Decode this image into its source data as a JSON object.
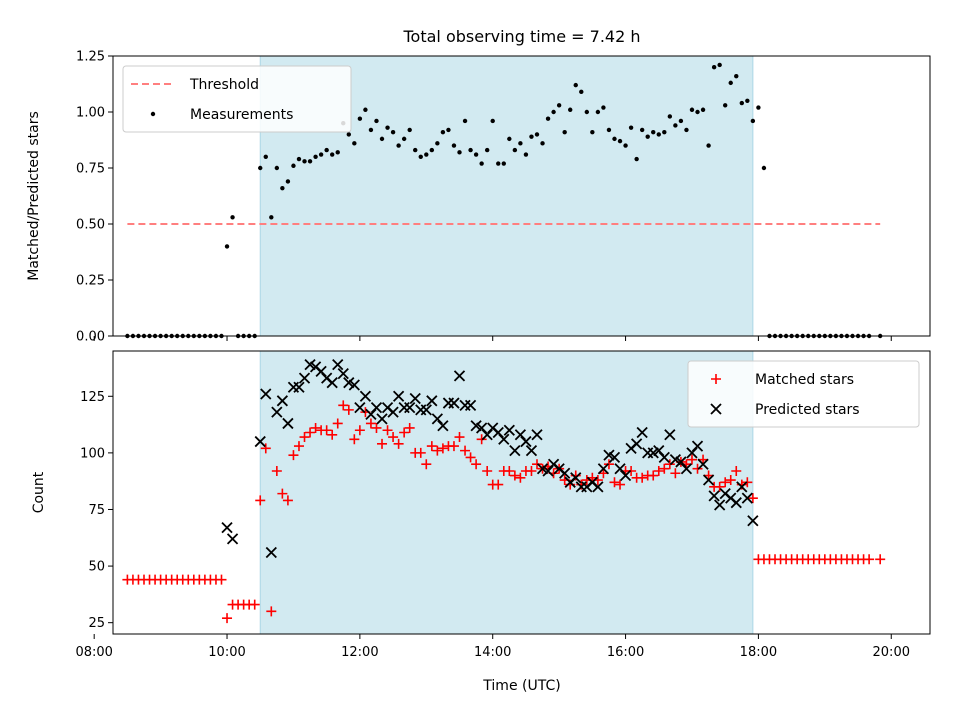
{
  "title": "Total observing time = 7.42 h",
  "xlabel": "Time (UTC)",
  "colors": {
    "shade": "#add8e6",
    "threshold": "#ff7f7f",
    "measurement": "#000000",
    "matched": "#ff0000",
    "predicted": "#000000"
  },
  "chart_data": [
    {
      "type": "scatter",
      "ylabel": "Matched/Predicted stars",
      "ylim": [
        0,
        1.25
      ],
      "xlim": [
        "08:17",
        "20:35"
      ],
      "yticks": [
        "0.00",
        "0.25",
        "0.50",
        "0.75",
        "1.00",
        "1.25"
      ],
      "yticks_values": [
        0,
        0.25,
        0.5,
        0.75,
        1.0,
        1.25
      ],
      "observing_window": [
        "10:30",
        "17:55"
      ],
      "threshold": {
        "name": "Threshold",
        "y": 0.5,
        "x_range": [
          "08:30",
          "19:50"
        ]
      },
      "legend": {
        "placement": "top-left",
        "entries": [
          "Threshold",
          "Measurements"
        ]
      },
      "series": [
        {
          "name": "Measurements",
          "x": [
            "08:30",
            "08:35",
            "08:40",
            "08:45",
            "08:50",
            "08:55",
            "09:00",
            "09:05",
            "09:10",
            "09:15",
            "09:20",
            "09:25",
            "09:30",
            "09:35",
            "09:40",
            "09:45",
            "09:50",
            "09:55",
            "10:00",
            "10:05",
            "10:10",
            "10:15",
            "10:20",
            "10:25",
            "10:30",
            "10:35",
            "10:40",
            "10:45",
            "10:50",
            "10:55",
            "11:00",
            "11:05",
            "11:10",
            "11:15",
            "11:20",
            "11:25",
            "11:30",
            "11:35",
            "11:40",
            "11:45",
            "11:50",
            "11:55",
            "12:00",
            "12:05",
            "12:10",
            "12:15",
            "12:20",
            "12:25",
            "12:30",
            "12:35",
            "12:40",
            "12:45",
            "12:50",
            "12:55",
            "13:00",
            "13:05",
            "13:10",
            "13:15",
            "13:20",
            "13:25",
            "13:30",
            "13:35",
            "13:40",
            "13:45",
            "13:50",
            "13:55",
            "14:00",
            "14:05",
            "14:10",
            "14:15",
            "14:20",
            "14:25",
            "14:30",
            "14:35",
            "14:40",
            "14:45",
            "14:50",
            "14:55",
            "15:00",
            "15:05",
            "15:10",
            "15:15",
            "15:20",
            "15:25",
            "15:30",
            "15:35",
            "15:40",
            "15:45",
            "15:50",
            "15:55",
            "16:00",
            "16:05",
            "16:10",
            "16:15",
            "16:20",
            "16:25",
            "16:30",
            "16:35",
            "16:40",
            "16:45",
            "16:50",
            "16:55",
            "17:00",
            "17:05",
            "17:10",
            "17:15",
            "17:20",
            "17:25",
            "17:30",
            "17:35",
            "17:40",
            "17:45",
            "17:50",
            "17:55",
            "18:00",
            "18:05",
            "18:10",
            "18:15",
            "18:20",
            "18:25",
            "18:30",
            "18:35",
            "18:40",
            "18:45",
            "18:50",
            "18:55",
            "19:00",
            "19:05",
            "19:10",
            "19:15",
            "19:20",
            "19:25",
            "19:30",
            "19:35",
            "19:40",
            "19:50"
          ],
          "y": [
            0,
            0,
            0,
            0,
            0,
            0,
            0,
            0,
            0,
            0,
            0,
            0,
            0,
            0,
            0,
            0,
            0,
            0,
            0.4,
            0.53,
            0,
            0,
            0,
            0,
            0.75,
            0.8,
            0.53,
            0.75,
            0.66,
            0.69,
            0.76,
            0.79,
            0.78,
            0.78,
            0.8,
            0.81,
            0.83,
            0.81,
            0.82,
            0.95,
            0.9,
            0.86,
            0.97,
            1.01,
            0.92,
            0.96,
            0.88,
            0.93,
            0.91,
            0.85,
            0.88,
            0.92,
            0.83,
            0.8,
            0.81,
            0.83,
            0.86,
            0.91,
            0.92,
            0.85,
            0.82,
            0.96,
            0.83,
            0.81,
            0.77,
            0.83,
            0.96,
            0.77,
            0.77,
            0.88,
            0.83,
            0.86,
            0.81,
            0.89,
            0.9,
            0.86,
            0.97,
            1.0,
            1.03,
            0.91,
            1.01,
            1.12,
            1.09,
            1.0,
            0.91,
            1.0,
            1.02,
            0.92,
            0.88,
            0.87,
            0.85,
            0.93,
            0.79,
            0.92,
            0.89,
            0.91,
            0.9,
            0.91,
            0.98,
            0.94,
            0.96,
            0.92,
            1.01,
            1.0,
            1.01,
            0.85,
            1.2,
            1.21,
            1.03,
            1.13,
            1.16,
            1.04,
            1.05,
            0.96,
            1.02,
            0.75,
            0,
            0,
            0,
            0,
            0,
            0,
            0,
            0,
            0,
            0,
            0,
            0,
            0,
            0,
            0,
            0,
            0,
            0,
            0,
            0
          ]
        }
      ]
    },
    {
      "type": "scatter",
      "ylabel": "Count",
      "xlabel": "Time (UTC)",
      "ylim": [
        20,
        145
      ],
      "xlim": [
        "08:17",
        "20:35"
      ],
      "yticks": [
        "25",
        "50",
        "75",
        "100",
        "125"
      ],
      "yticks_values": [
        25,
        50,
        75,
        100,
        125
      ],
      "xticks": [
        "08:00",
        "10:00",
        "12:00",
        "14:00",
        "16:00",
        "18:00",
        "20:00"
      ],
      "observing_window": [
        "10:30",
        "17:55"
      ],
      "legend": {
        "placement": "top-right",
        "entries": [
          "Matched stars",
          "Predicted stars"
        ]
      },
      "series": [
        {
          "name": "Matched stars",
          "x": [
            "08:30",
            "08:35",
            "08:40",
            "08:45",
            "08:50",
            "08:55",
            "09:00",
            "09:05",
            "09:10",
            "09:15",
            "09:20",
            "09:25",
            "09:30",
            "09:35",
            "09:40",
            "09:45",
            "09:50",
            "09:55",
            "10:00",
            "10:05",
            "10:10",
            "10:15",
            "10:20",
            "10:25",
            "10:30",
            "10:35",
            "10:40",
            "10:45",
            "10:50",
            "10:55",
            "11:00",
            "11:05",
            "11:10",
            "11:15",
            "11:20",
            "11:25",
            "11:30",
            "11:35",
            "11:40",
            "11:45",
            "11:50",
            "11:55",
            "12:00",
            "12:05",
            "12:10",
            "12:15",
            "12:20",
            "12:25",
            "12:30",
            "12:35",
            "12:40",
            "12:45",
            "12:50",
            "12:55",
            "13:00",
            "13:05",
            "13:10",
            "13:15",
            "13:20",
            "13:25",
            "13:30",
            "13:35",
            "13:40",
            "13:45",
            "13:50",
            "13:55",
            "14:00",
            "14:05",
            "14:10",
            "14:15",
            "14:20",
            "14:25",
            "14:30",
            "14:35",
            "14:40",
            "14:45",
            "14:50",
            "14:55",
            "15:00",
            "15:05",
            "15:10",
            "15:15",
            "15:20",
            "15:25",
            "15:30",
            "15:35",
            "15:40",
            "15:45",
            "15:50",
            "15:55",
            "16:00",
            "16:05",
            "16:10",
            "16:15",
            "16:20",
            "16:25",
            "16:30",
            "16:35",
            "16:40",
            "16:45",
            "16:50",
            "16:55",
            "17:00",
            "17:05",
            "17:10",
            "17:15",
            "17:20",
            "17:25",
            "17:30",
            "17:35",
            "17:40",
            "17:45",
            "17:50",
            "17:55",
            "18:00",
            "18:05",
            "18:10",
            "18:15",
            "18:20",
            "18:25",
            "18:30",
            "18:35",
            "18:40",
            "18:45",
            "18:50",
            "18:55",
            "19:00",
            "19:05",
            "19:10",
            "19:15",
            "19:20",
            "19:25",
            "19:30",
            "19:35",
            "19:40",
            "19:50"
          ],
          "y": [
            44,
            44,
            44,
            44,
            44,
            44,
            44,
            44,
            44,
            44,
            44,
            44,
            44,
            44,
            44,
            44,
            44,
            44,
            27,
            33,
            33,
            33,
            33,
            33,
            79,
            102,
            30,
            92,
            82,
            79,
            99,
            103,
            107,
            109,
            111,
            110,
            110,
            108,
            113,
            121,
            119,
            106,
            110,
            118,
            113,
            111,
            104,
            110,
            107,
            104,
            109,
            111,
            100,
            100,
            95,
            103,
            101,
            102,
            103,
            103,
            107,
            101,
            98,
            95,
            106,
            92,
            86,
            86,
            92,
            92,
            90,
            89,
            92,
            92,
            95,
            93,
            94,
            91,
            93,
            88,
            86,
            90,
            86,
            88,
            89,
            88,
            91,
            95,
            87,
            86,
            92,
            92,
            89,
            89,
            90,
            90,
            92,
            93,
            95,
            91,
            96,
            95,
            97,
            93,
            97,
            90,
            85,
            85,
            87,
            88,
            92,
            86,
            87,
            80,
            53,
            53,
            53,
            53,
            53,
            53,
            53,
            53,
            53,
            53,
            53,
            53,
            53,
            53,
            53,
            53,
            53,
            53,
            53,
            53,
            53,
            53
          ]
        },
        {
          "name": "Predicted stars",
          "x": [
            "10:00",
            "10:05",
            "10:30",
            "10:35",
            "10:40",
            "10:45",
            "10:50",
            "10:55",
            "11:00",
            "11:05",
            "11:10",
            "11:15",
            "11:20",
            "11:25",
            "11:30",
            "11:35",
            "11:40",
            "11:45",
            "11:50",
            "11:55",
            "12:00",
            "12:05",
            "12:10",
            "12:15",
            "12:20",
            "12:25",
            "12:30",
            "12:35",
            "12:40",
            "12:45",
            "12:50",
            "12:55",
            "13:00",
            "13:05",
            "13:10",
            "13:15",
            "13:20",
            "13:25",
            "13:30",
            "13:35",
            "13:40",
            "13:45",
            "13:50",
            "13:55",
            "14:00",
            "14:05",
            "14:10",
            "14:15",
            "14:20",
            "14:25",
            "14:30",
            "14:35",
            "14:40",
            "14:45",
            "14:50",
            "14:55",
            "15:00",
            "15:05",
            "15:10",
            "15:15",
            "15:20",
            "15:25",
            "15:30",
            "15:35",
            "15:40",
            "15:45",
            "15:50",
            "15:55",
            "16:00",
            "16:05",
            "16:10",
            "16:15",
            "16:20",
            "16:25",
            "16:30",
            "16:35",
            "16:40",
            "16:45",
            "16:50",
            "16:55",
            "17:00",
            "17:05",
            "17:10",
            "17:15",
            "17:20",
            "17:25",
            "17:30",
            "17:35",
            "17:40",
            "17:45",
            "17:50",
            "17:55"
          ],
          "y": [
            67,
            62,
            105,
            126,
            56,
            118,
            123,
            113,
            129,
            129,
            133,
            139,
            138,
            136,
            133,
            131,
            139,
            135,
            131,
            130,
            120,
            125,
            117,
            120,
            115,
            120,
            118,
            125,
            120,
            120,
            124,
            119,
            119,
            123,
            115,
            112,
            122,
            122,
            134,
            121,
            121,
            112,
            111,
            108,
            111,
            109,
            106,
            110,
            101,
            108,
            105,
            101,
            108,
            93,
            92,
            95,
            93,
            91,
            87,
            89,
            85,
            85,
            87,
            85,
            93,
            99,
            98,
            93,
            90,
            102,
            104,
            109,
            100,
            100,
            101,
            98,
            108,
            97,
            96,
            93,
            100,
            103,
            95,
            88,
            81,
            77,
            82,
            80,
            78,
            85,
            80,
            70
          ]
        }
      ]
    }
  ]
}
